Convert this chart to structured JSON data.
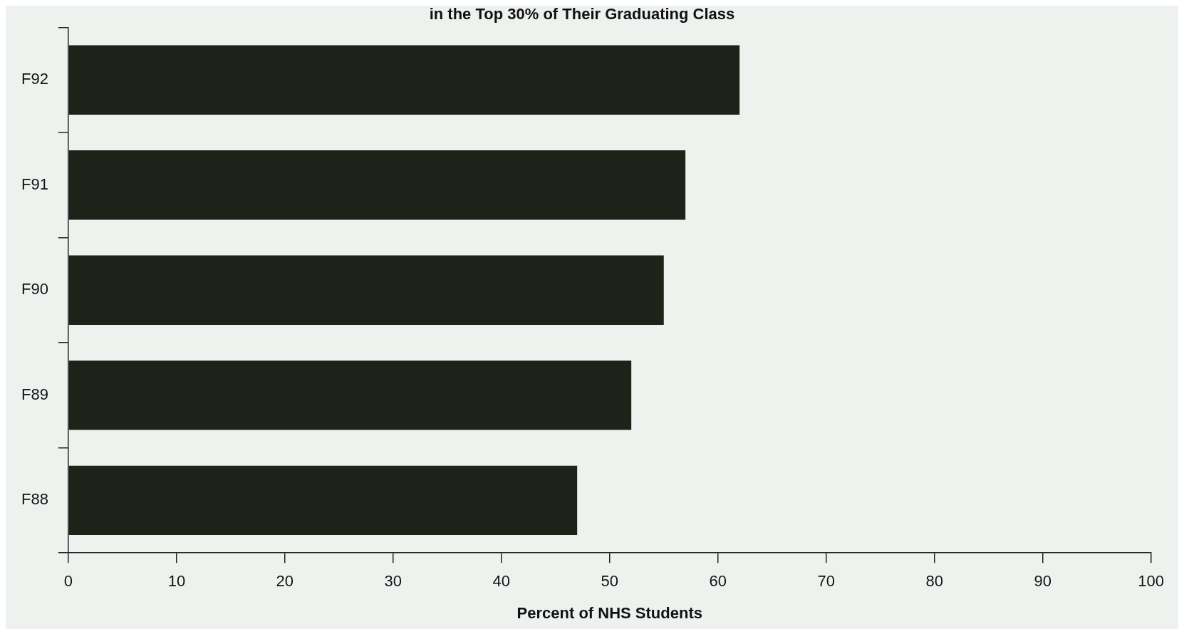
{
  "chart_data": {
    "type": "bar",
    "orientation": "horizontal",
    "title": "in the Top 30% of Their Graduating Class",
    "xlabel": "Percent of NHS Students",
    "categories": [
      "F92",
      "F91",
      "F90",
      "F89",
      "F88"
    ],
    "values": [
      62,
      57,
      55,
      52,
      47
    ],
    "color": "#1f2219",
    "xlim": [
      0,
      100
    ],
    "xticks": [
      0,
      10,
      20,
      30,
      40,
      50,
      60,
      70,
      80,
      90,
      100
    ],
    "grid": false,
    "legend": false
  }
}
